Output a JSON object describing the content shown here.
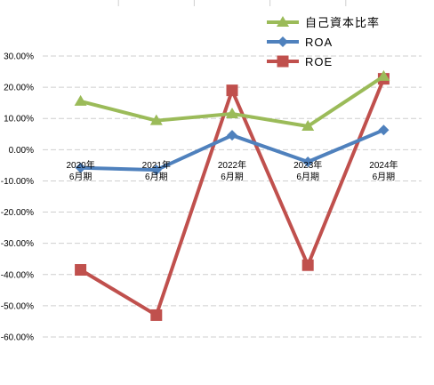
{
  "chart_data": {
    "type": "line",
    "categories": [
      [
        "2020年",
        "6月期"
      ],
      [
        "2021年",
        "6月期"
      ],
      [
        "2022年",
        "6月期"
      ],
      [
        "2023年",
        "6月期"
      ],
      [
        "2024年",
        "6月期"
      ]
    ],
    "y_tick_labels": [
      "30.00%",
      "20.00%",
      "10.00%",
      "0.00%",
      "-10.00%",
      "-20.00%",
      "-30.00%",
      "-40.00%",
      "-50.00%",
      "-60.00%"
    ],
    "ylim": [
      -60,
      30
    ],
    "grid": true,
    "legend_position": "top-right",
    "series": [
      {
        "name": "自己資本比率",
        "color": "#9BBB59",
        "marker": "triangle",
        "values": [
          15.5,
          9.3,
          11.5,
          7.5,
          23.5
        ]
      },
      {
        "name": "ROA",
        "color": "#4F81BD",
        "marker": "diamond",
        "values": [
          -5.8,
          -6.5,
          4.6,
          -3.9,
          6.3
        ]
      },
      {
        "name": "ROE",
        "color": "#C0504D",
        "marker": "square",
        "values": [
          -38.5,
          -53.0,
          19.0,
          -37.0,
          22.7
        ]
      }
    ]
  }
}
